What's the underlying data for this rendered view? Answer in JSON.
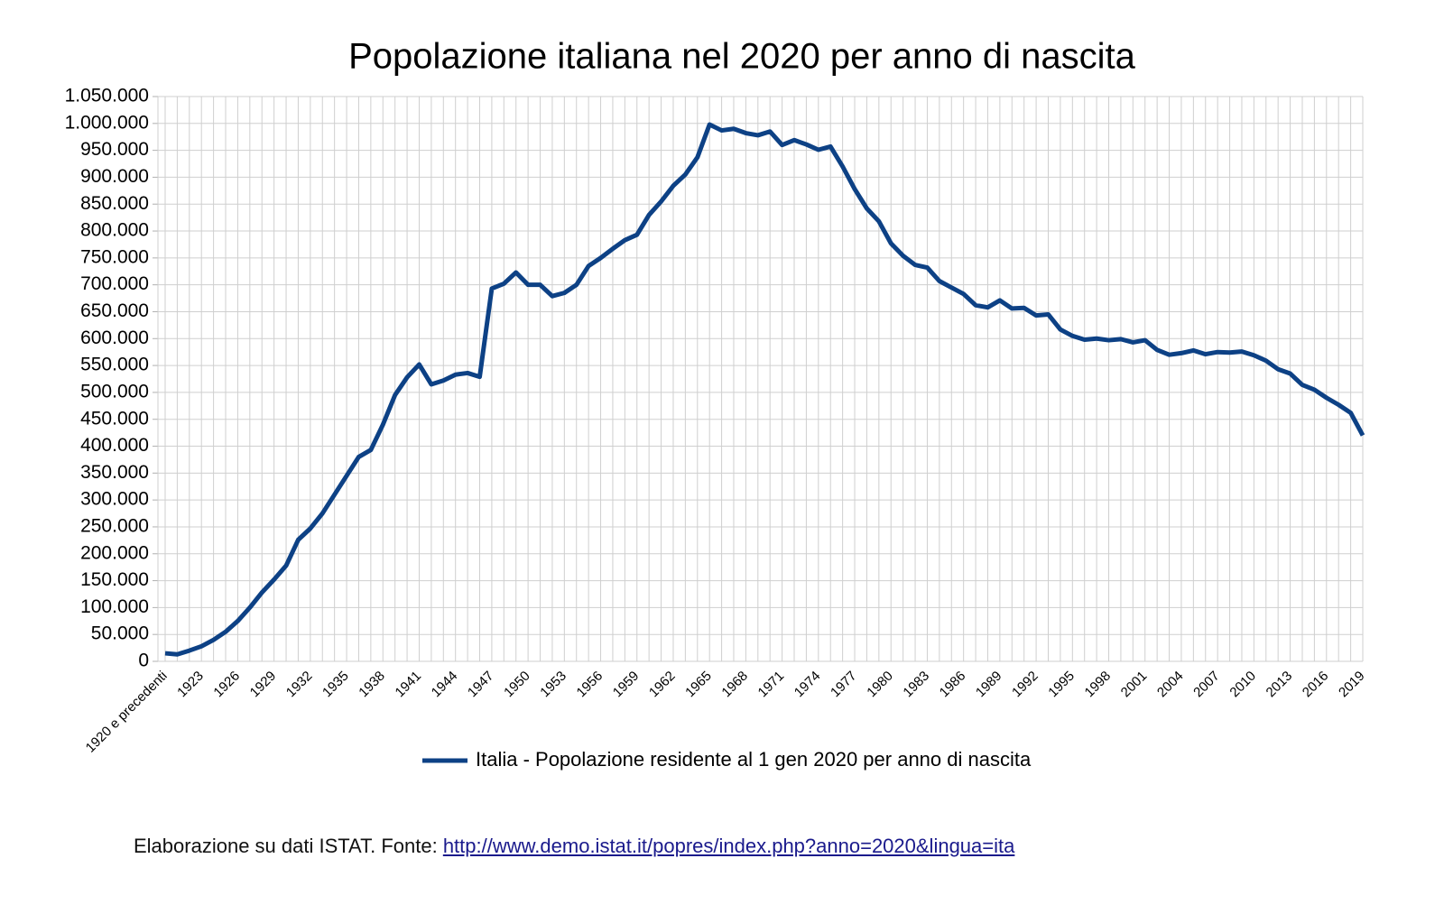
{
  "chart_data": {
    "type": "line",
    "title": "Popolazione italiana nel 2020 per anno di nascita",
    "categories": [
      "1920 e precedenti",
      null,
      null,
      "1923",
      null,
      null,
      "1926",
      null,
      null,
      "1929",
      null,
      null,
      "1932",
      null,
      null,
      "1935",
      null,
      null,
      "1938",
      null,
      null,
      "1941",
      null,
      null,
      "1944",
      null,
      null,
      "1947",
      null,
      null,
      "1950",
      null,
      null,
      "1953",
      null,
      null,
      "1956",
      null,
      null,
      "1959",
      null,
      null,
      "1962",
      null,
      null,
      "1965",
      null,
      null,
      "1968",
      null,
      null,
      "1971",
      null,
      null,
      "1974",
      null,
      null,
      "1977",
      null,
      null,
      "1980",
      null,
      null,
      "1983",
      null,
      null,
      "1986",
      null,
      null,
      "1989",
      null,
      null,
      "1992",
      null,
      null,
      "1995",
      null,
      null,
      "1998",
      null,
      null,
      "2001",
      null,
      null,
      "2004",
      null,
      null,
      "2007",
      null,
      null,
      "2010",
      null,
      null,
      "2013",
      null,
      null,
      "2016",
      null,
      null,
      "2019"
    ],
    "series": [
      {
        "name": "Italia - Popolazione residente al 1 gen 2020 per anno di nascita",
        "color": "#0d4185",
        "values": [
          15000,
          13000,
          20000,
          28000,
          40000,
          55000,
          75000,
          100000,
          128000,
          152000,
          178000,
          226000,
          247000,
          275000,
          310000,
          345000,
          380000,
          393000,
          440000,
          495000,
          528000,
          552000,
          515000,
          522000,
          533000,
          536000,
          529000,
          693000,
          702000,
          723000,
          700000,
          700000,
          679000,
          685000,
          700000,
          735000,
          750000,
          767000,
          783000,
          793000,
          830000,
          855000,
          884000,
          905000,
          937000,
          998000,
          987000,
          990000,
          982000,
          978000,
          985000,
          960000,
          969000,
          961000,
          951000,
          957000,
          920000,
          878000,
          842000,
          818000,
          777000,
          754000,
          737000,
          732000,
          707000,
          695000,
          683000,
          662000,
          658000,
          671000,
          656000,
          657000,
          643000,
          645000,
          617000,
          605000,
          598000,
          600000,
          597000,
          599000,
          593000,
          597000,
          579000,
          570000,
          573000,
          578000,
          571000,
          575000,
          574000,
          576000,
          569000,
          559000,
          543000,
          535000,
          514000,
          505000,
          490000,
          477000,
          462000,
          420000
        ]
      }
    ],
    "ylim": [
      0,
      1050000
    ],
    "yticks": [
      0,
      {
        "value": 50000,
        "label": "50.000"
      },
      {
        "value": 100000,
        "label": "100.000"
      },
      {
        "value": 150000,
        "label": "150.000"
      },
      {
        "value": 200000,
        "label": "200.000"
      },
      {
        "value": 250000,
        "label": "250.000"
      },
      {
        "value": 300000,
        "label": "300.000"
      },
      {
        "value": 350000,
        "label": "350.000"
      },
      {
        "value": 400000,
        "label": "400.000"
      },
      {
        "value": 450000,
        "label": "450.000"
      },
      {
        "value": 500000,
        "label": "500.000"
      },
      {
        "value": 550000,
        "label": "550.000"
      },
      {
        "value": 600000,
        "label": "600.000"
      },
      {
        "value": 650000,
        "label": "650.000"
      },
      {
        "value": 700000,
        "label": "700.000"
      },
      {
        "value": 750000,
        "label": "750.000"
      },
      {
        "value": 800000,
        "label": "800.000"
      },
      {
        "value": 850000,
        "label": "850.000"
      },
      {
        "value": 900000,
        "label": "900.000"
      },
      {
        "value": 950000,
        "label": "950.000"
      },
      {
        "value": 1000000,
        "label": "1.000.000"
      },
      {
        "value": 1050000,
        "label": "1.050.000"
      }
    ],
    "grid": true,
    "legend": "bottom"
  },
  "footer": {
    "text": "Elaborazione su dati ISTAT. Fonte: ",
    "link": "http://www.demo.istat.it/popres/index.php?anno=2020&lingua=ita"
  }
}
